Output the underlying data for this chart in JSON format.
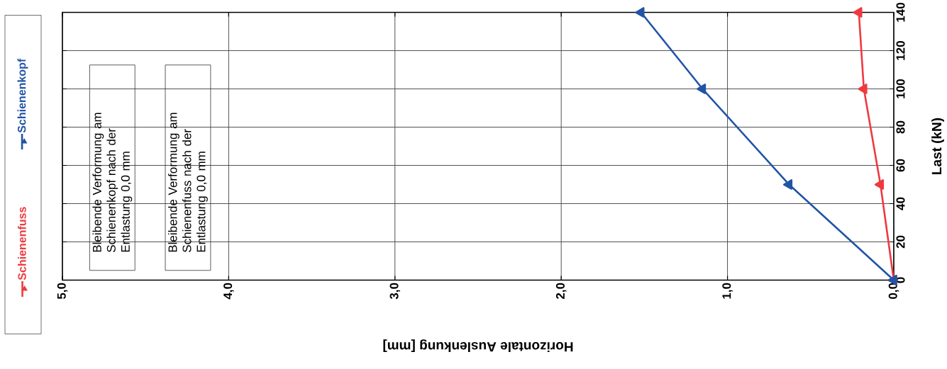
{
  "chart_data": {
    "type": "line",
    "xlabel": "Horizontale Auslenkung [mm]",
    "ylabel": "Last (kN)",
    "series": [
      {
        "name": "Schienenfuss",
        "color": "#ee3a3f",
        "x": [
          0.0,
          0.08,
          0.18,
          0.21
        ],
        "values": [
          0,
          50,
          100,
          140
        ]
      },
      {
        "name": "Schienenkopf",
        "color": "#2254a5",
        "x": [
          0.0,
          0.63,
          1.15,
          1.52
        ],
        "values": [
          0,
          50,
          100,
          140
        ]
      }
    ],
    "xlim": [
      5,
      0
    ],
    "xticks": [
      {
        "value": 5,
        "label": "5,0"
      },
      {
        "value": 4,
        "label": "4,0"
      },
      {
        "value": 3,
        "label": "3,0"
      },
      {
        "value": 2,
        "label": "2,0"
      },
      {
        "value": 1,
        "label": "1,0"
      },
      {
        "value": 0,
        "label": "0,0"
      }
    ],
    "ylim": [
      0,
      140
    ],
    "yticks": [
      0,
      20,
      40,
      60,
      80,
      100,
      120,
      140
    ],
    "annotations": [
      "Bleibende Verformung am Schienenkopf nach der Entlastung 0,0 mm",
      "Bleibende Verformung am Schienenfuss nach der Entlastung 0,0 mm"
    ],
    "grid": true,
    "legend": "left",
    "marker": "triangle",
    "line_style": "solid"
  }
}
